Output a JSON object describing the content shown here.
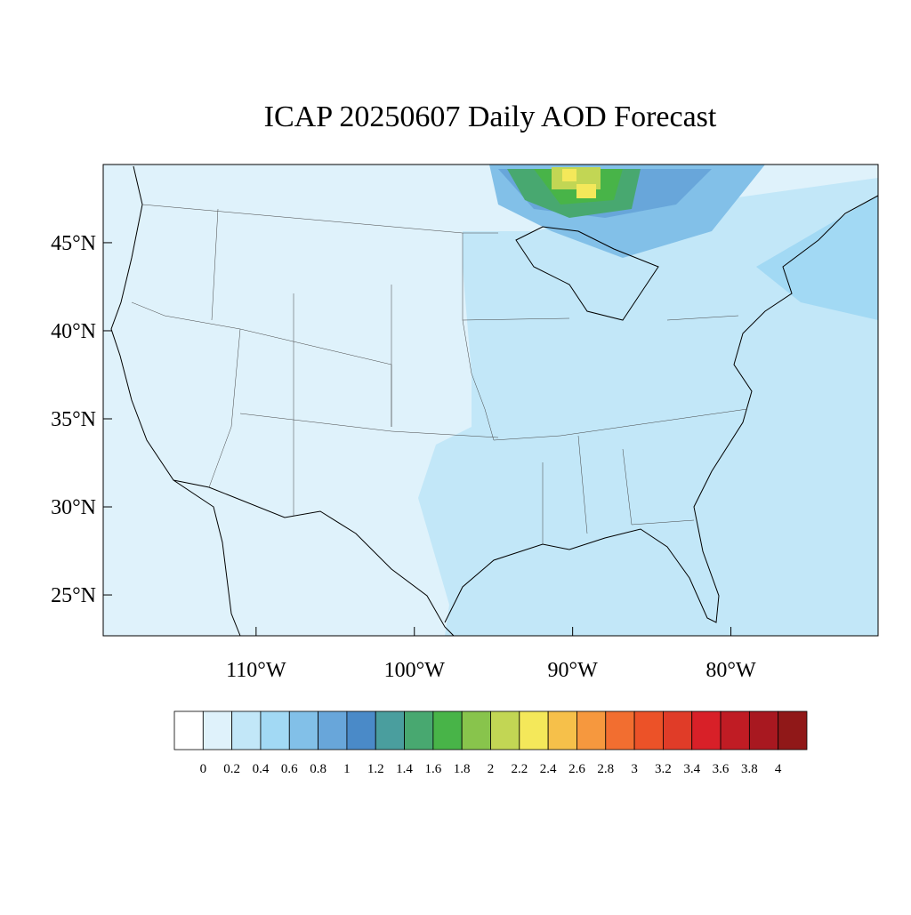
{
  "title": "ICAP 20250607 Daily AOD Forecast",
  "map": {
    "lon_range": [
      -119.66,
      -70.7
    ],
    "lat_range": [
      22.68,
      49.44
    ],
    "lat_ticks": [
      {
        "value": 25,
        "label": "25°N"
      },
      {
        "value": 30,
        "label": "30°N"
      },
      {
        "value": 35,
        "label": "35°N"
      },
      {
        "value": 40,
        "label": "40°N"
      },
      {
        "value": 45,
        "label": "45°N"
      }
    ],
    "lon_ticks": [
      {
        "value": -110,
        "label": "110°W"
      },
      {
        "value": -100,
        "label": "100°W"
      },
      {
        "value": -90,
        "label": "90°W"
      },
      {
        "value": -80,
        "label": "80°W"
      }
    ]
  },
  "colorbar": {
    "colors": [
      "#ffffff",
      "#dff2fb",
      "#c2e7f8",
      "#a2d9f4",
      "#82c0e8",
      "#68a6da",
      "#4a8ac8",
      "#4a9e9e",
      "#48a870",
      "#48b448",
      "#88c44c",
      "#c2d654",
      "#f4e85a",
      "#f6c04a",
      "#f6983e",
      "#f26e30",
      "#ec5228",
      "#e03c28",
      "#d82028",
      "#c01c24",
      "#a81820",
      "#901818"
    ],
    "ticks": [
      0,
      0.2,
      0.4,
      0.6,
      0.8,
      1,
      1.2,
      1.4,
      1.6,
      1.8,
      2,
      2.2,
      2.4,
      2.6,
      2.8,
      3,
      3.2,
      3.4,
      3.6,
      3.8,
      4
    ]
  }
}
